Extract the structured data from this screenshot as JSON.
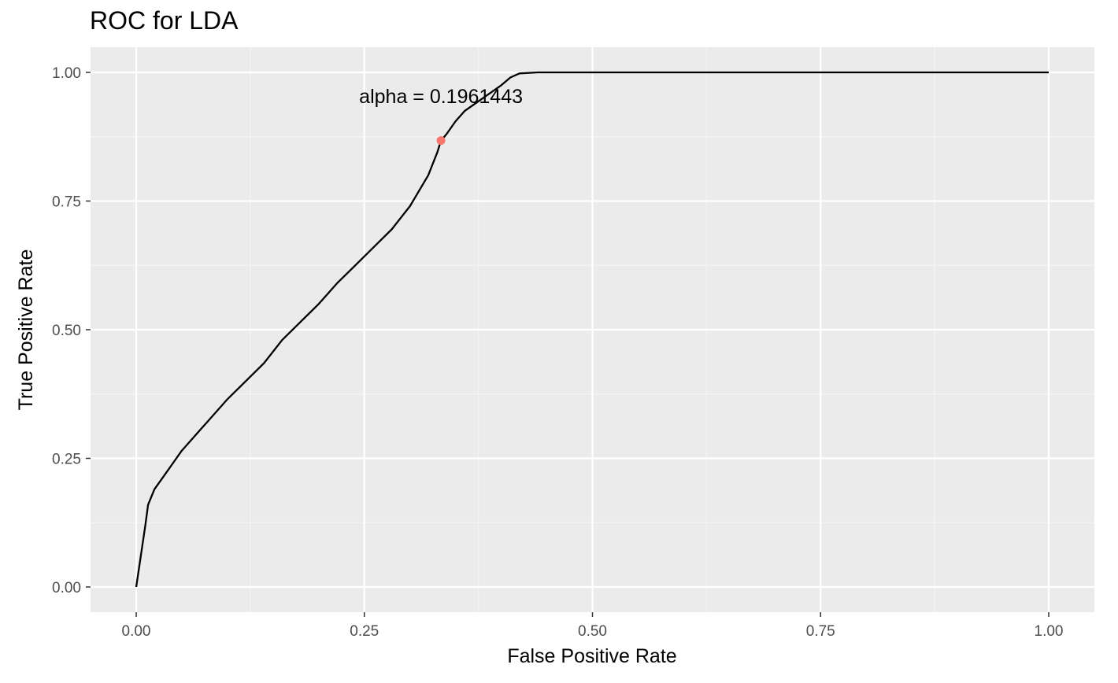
{
  "chart_data": {
    "type": "line",
    "title": "ROC for LDA",
    "xlabel": "False Positive Rate",
    "ylabel": "True Positive Rate",
    "xlim": [
      -0.1,
      1.1
    ],
    "ylim": [
      -0.05,
      1.05
    ],
    "x_ticks": [
      "0.00",
      "0.25",
      "0.50",
      "0.75",
      "1.00"
    ],
    "y_ticks": [
      "0.00",
      "0.25",
      "0.50",
      "0.75",
      "1.00"
    ],
    "grid": true,
    "legend": "none",
    "series": [
      {
        "color": "#000000",
        "x": [
          0.0,
          0.005,
          0.01,
          0.013,
          0.02,
          0.03,
          0.04,
          0.05,
          0.06,
          0.07,
          0.08,
          0.09,
          0.1,
          0.12,
          0.14,
          0.16,
          0.18,
          0.2,
          0.22,
          0.24,
          0.26,
          0.28,
          0.3,
          0.32,
          0.33,
          0.334,
          0.34,
          0.35,
          0.36,
          0.38,
          0.4,
          0.41,
          0.42,
          0.44,
          0.47,
          0.5,
          0.6,
          0.7,
          0.8,
          0.9,
          1.0
        ],
        "y": [
          0.0,
          0.06,
          0.12,
          0.16,
          0.19,
          0.215,
          0.24,
          0.265,
          0.285,
          0.305,
          0.325,
          0.345,
          0.365,
          0.4,
          0.435,
          0.48,
          0.515,
          0.55,
          0.59,
          0.625,
          0.66,
          0.695,
          0.74,
          0.8,
          0.845,
          0.8675,
          0.88,
          0.905,
          0.925,
          0.95,
          0.975,
          0.99,
          0.998,
          1.0,
          1.0,
          1.0,
          1.0,
          1.0,
          1.0,
          1.0,
          1.0
        ]
      }
    ],
    "highlight_point": {
      "x": 0.334,
      "y": 0.8675,
      "color": "#F8766D"
    },
    "annotation": {
      "text": "alpha = 0.1961443",
      "x": 0.334,
      "y": 0.94
    },
    "colors": {
      "panel": "#EBEBEB",
      "grid_major": "#FFFFFF",
      "grid_minor": "#F5F5F5",
      "tick": "#333333"
    }
  }
}
